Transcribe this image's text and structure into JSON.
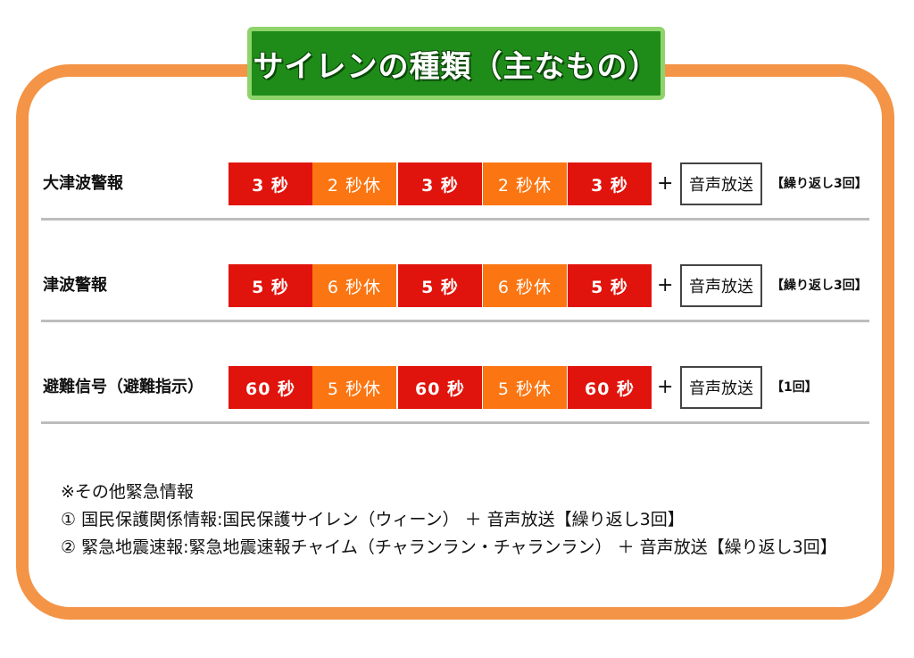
{
  "title": "サイレンの種類（主なもの）",
  "rows": [
    {
      "label": "大津波警報",
      "segments": [
        {
          "text": "3 秒",
          "type": "siren"
        },
        {
          "text": "2 秒休",
          "type": "rest"
        },
        {
          "text": "3 秒",
          "type": "siren"
        },
        {
          "text": "2 秒休",
          "type": "rest"
        },
        {
          "text": "3 秒",
          "type": "siren"
        }
      ],
      "plus": "+",
      "voice": "音声放送",
      "repeat": "【繰り返し3回】"
    },
    {
      "label": "津波警報",
      "segments": [
        {
          "text": "5 秒",
          "type": "siren"
        },
        {
          "text": "6 秒休",
          "type": "rest"
        },
        {
          "text": "5 秒",
          "type": "siren"
        },
        {
          "text": "6 秒休",
          "type": "rest"
        },
        {
          "text": "5 秒",
          "type": "siren"
        }
      ],
      "plus": "+",
      "voice": "音声放送",
      "repeat": "【繰り返し3回】"
    },
    {
      "label": "避難信号（避難指示）",
      "segments": [
        {
          "text": "60 秒",
          "type": "siren"
        },
        {
          "text": "5 秒休",
          "type": "rest"
        },
        {
          "text": "60 秒",
          "type": "siren"
        },
        {
          "text": "5 秒休",
          "type": "rest"
        },
        {
          "text": "60 秒",
          "type": "siren"
        }
      ],
      "plus": "+",
      "voice": "音声放送",
      "repeat": "【1回】"
    }
  ],
  "notes": [
    "※その他緊急情報",
    "① 国民保護関係情報:国民保護サイレン（ウィーン） ＋ 音声放送【繰り返し3回】",
    "② 緊急地震速報:緊急地震速報チャイム（チャランラン・チャランラン） ＋ 音声放送【繰り返し3回】"
  ],
  "colors": {
    "siren": "#e0140c",
    "rest": "#fb7612",
    "frame": "#f39447",
    "title_bg": "#1f8c1a",
    "title_border": "#8fd46b"
  }
}
